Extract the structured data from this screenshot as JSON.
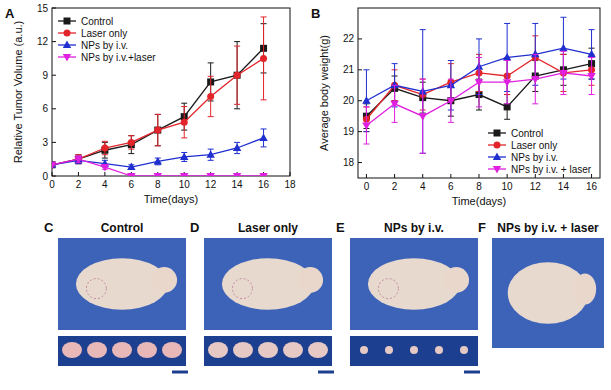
{
  "chart_data": [
    {
      "type": "line",
      "title": "A",
      "x_label": "Time(days)",
      "y_label": "Relative Tumor Volume (a.u.)",
      "x": [
        0,
        2,
        4,
        6,
        8,
        10,
        12,
        14,
        16
      ],
      "xlim": [
        0,
        18
      ],
      "xticks": [
        0,
        2,
        4,
        6,
        8,
        10,
        12,
        14,
        16,
        18
      ],
      "ylim": [
        0,
        15
      ],
      "yticks": [
        0,
        3,
        6,
        9,
        12,
        15
      ],
      "legend": "upper left",
      "series": [
        {
          "name": "Control",
          "color": "#1a1a1a",
          "marker": "square",
          "values": [
            1,
            1.5,
            2.3,
            2.8,
            4.1,
            5.3,
            8.4,
            9.0,
            11.4
          ],
          "errors": [
            0.2,
            0.4,
            0.7,
            0.8,
            1.4,
            1.2,
            1.7,
            3.0,
            2.2
          ]
        },
        {
          "name": "Laser only",
          "color": "#e3242b",
          "marker": "circle",
          "values": [
            1,
            1.5,
            2.5,
            3.0,
            4.1,
            4.8,
            7.1,
            9.0,
            10.5
          ],
          "errors": [
            0.2,
            0.4,
            0.6,
            0.6,
            1.4,
            1.4,
            1.8,
            2.6,
            3.7
          ]
        },
        {
          "name": "NPs by i.v.",
          "color": "#1f2fd0",
          "marker": "triangle",
          "values": [
            1,
            1.4,
            1.1,
            0.8,
            1.3,
            1.7,
            1.9,
            2.5,
            3.4
          ],
          "errors": [
            0.1,
            0.3,
            0.3,
            0.2,
            0.3,
            0.4,
            0.5,
            0.5,
            0.8
          ]
        },
        {
          "name": "NPs by i.v.+laser",
          "color": "#e020e0",
          "marker": "triangle_down",
          "values": [
            1,
            1.5,
            0.8,
            0,
            0,
            0,
            0,
            0,
            0
          ],
          "errors": [
            0.1,
            0.3,
            0.2,
            0,
            0,
            0,
            0,
            0,
            0
          ]
        }
      ]
    },
    {
      "type": "line",
      "title": "B",
      "x_label": "Time(days)",
      "y_label": "Average body weight(g)",
      "x": [
        0,
        2,
        4,
        6,
        8,
        10,
        12,
        14,
        16
      ],
      "xlim": [
        -0.6,
        16.6
      ],
      "xticks": [
        0,
        2,
        4,
        6,
        8,
        10,
        12,
        14,
        16
      ],
      "ylim": [
        17.5,
        23
      ],
      "yticks": [
        18,
        19,
        20,
        21,
        22
      ],
      "legend": "lower right",
      "series": [
        {
          "name": "Control",
          "color": "#1a1a1a",
          "marker": "square",
          "values": [
            19.5,
            20.4,
            20.1,
            20.0,
            20.2,
            19.8,
            20.8,
            21.0,
            21.2
          ],
          "errors": [
            0.4,
            0.4,
            0.5,
            0.5,
            0.5,
            0.4,
            0.5,
            0.5,
            0.5
          ]
        },
        {
          "name": "Laser only",
          "color": "#e3242b",
          "marker": "circle",
          "values": [
            19.4,
            20.5,
            20.2,
            20.6,
            20.9,
            20.8,
            21.4,
            20.9,
            21.0
          ],
          "errors": [
            0.4,
            0.5,
            0.5,
            0.6,
            0.6,
            0.6,
            0.7,
            0.6,
            0.5
          ]
        },
        {
          "name": "NPs by i.v.",
          "color": "#1f2fd0",
          "marker": "triangle",
          "values": [
            20.0,
            20.5,
            20.3,
            20.5,
            21.1,
            21.4,
            21.5,
            21.7,
            21.5
          ],
          "errors": [
            1.0,
            0.7,
            2.0,
            0.8,
            0.9,
            1.1,
            1.0,
            1.0,
            0.8
          ]
        },
        {
          "name": "NPs by i.v. + laser",
          "color": "#e020e0",
          "marker": "triangle_down",
          "values": [
            19.2,
            19.9,
            19.5,
            20.0,
            20.6,
            20.6,
            20.7,
            20.9,
            20.8
          ],
          "errors": [
            0.6,
            0.6,
            1.2,
            0.7,
            0.8,
            0.7,
            0.8,
            0.7,
            0.6
          ]
        }
      ]
    }
  ],
  "photos": [
    {
      "letter": "C",
      "label": "Control"
    },
    {
      "letter": "D",
      "label": "Laser only"
    },
    {
      "letter": "E",
      "label": "NPs by i.v."
    },
    {
      "letter": "F",
      "label": "NPs by i.v. + laser"
    }
  ]
}
